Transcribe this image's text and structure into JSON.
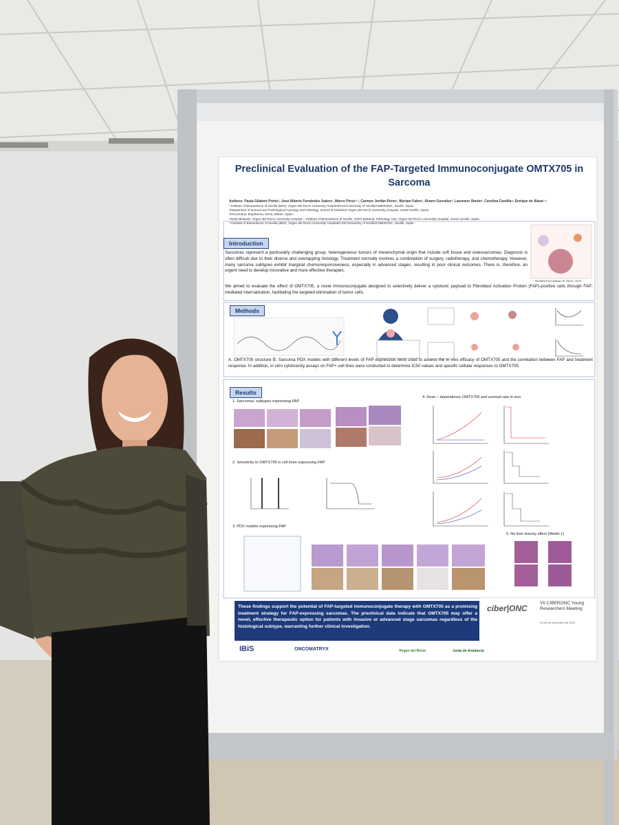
{
  "poster": {
    "title": "Preclinical Evaluation of the FAP-Targeted Immunoconjugate OMTX705 in Sarcoma",
    "authors": "Authors: Paula Gilabert Prieto¹, José Alberto Fernández Juárez¹, Marco Pérez¹·², Carmen Jordán-Pérez¹, Myriam Fabre³, Álvaro González³, Laureano Simón³, Carolina Castilla⁴, Enrique de Álava¹·⁵",
    "affiliations": [
      "¹ Institute of Biomedicine of Sevilla (IBiS), Virgen del Rocío University Hospital/CSIC/University of Sevilla/CIBERONC, Seville, Spain.",
      "²Department of Normal and Pathological Cytology and Histology, School of Medicine Virgen del Rocío University Hospital, 41009 Seville, Spain.",
      "³Oncomatryx Biopharma, Derio, Bilbao, Spain.",
      "⁴Nodo Biobank, Virgen del Rocío University Hospital – Institute of Biomedicine of Seville, SSPA Biobank, Pathology Unit, Virgen del Rocío University Hospital, 41013 Seville, Spain.",
      "⁵ Institute of Biomedicine of Sevilla (IBiS), Virgen del Rocío University Hospital/CSIC/University of Sevilla/CIBERONC, Seville, Spain."
    ],
    "introduction": {
      "heading": "Introduction",
      "text": "Sarcomas represent a particularly challenging group, heterogeneous tumors of mesenchymal origin that include soft tissue and osteosarcomas. Diagnosis is often difficult due to their diverse and overlapping histology. Treatment normally involves a combination of surgery, radiotherapy, and chemotherapy. However, many sarcoma subtypes exhibit marginal chemoresponsiveness, especially in advanced stages, resulting in poor clinical outcomes. There is, therefore, an urgent need to develop innovative and more effective therapies.",
      "credit": "Modified from Mariam M. Pérez, 2023",
      "aim": "We aimed to evaluate the effect of OMTX705, a novel immunoconjugate designed to selectively deliver a cytotoxic payload to Fibroblast Activation Protein (FAP)-positive cells through FAP-mediated internalization, facilitating the targeted elimination of tumor cells."
    },
    "methods": {
      "heading": "Methods",
      "caption": "A. OMTX705 structure B. Sarcoma PDX models with different levels of FAP expression were used to assess the in vivo efficacy of OMTX705 and the correlation between FAP and treatment response. In addition, in vitro cytotoxicity assays on FAP+ cell lines were conducted to determine IC50 values and specific cellular responses to OMTX705."
    },
    "results": {
      "heading": "Results",
      "subtitles": [
        "1. Sarcomas' subtypes expressing FAP",
        "2. Sensitivity to OMTX705 in cell lines expressing FAP",
        "3. PDX models expressing FAP",
        "4. Dose – dependence OMTX705 and survival rate in vivo",
        "5. No liver toxicity effect (Model 1)"
      ]
    },
    "conclusion": "These findings support the potential of FAP-targeted immunoconjugate therapy with OMTX705 as a promising treatment strategy for FAP-expressing sarcomas. The preclinical data indicate that OMTX705 may offer a novel, effective therapeutic option for patients with invasive or advanced stage sarcomas regardless of the histological subtype, warranting further clinical investigation.",
    "meeting": {
      "logo": "ciber|ONC",
      "name": "VII CIBERONC Young Researchers Meeting",
      "dates": "19-20 de noviembre de 2025"
    },
    "logos": [
      "IBiS",
      "ONCOMATRYX",
      "Virgen del Rocío",
      "Junta de Andalucía"
    ]
  }
}
